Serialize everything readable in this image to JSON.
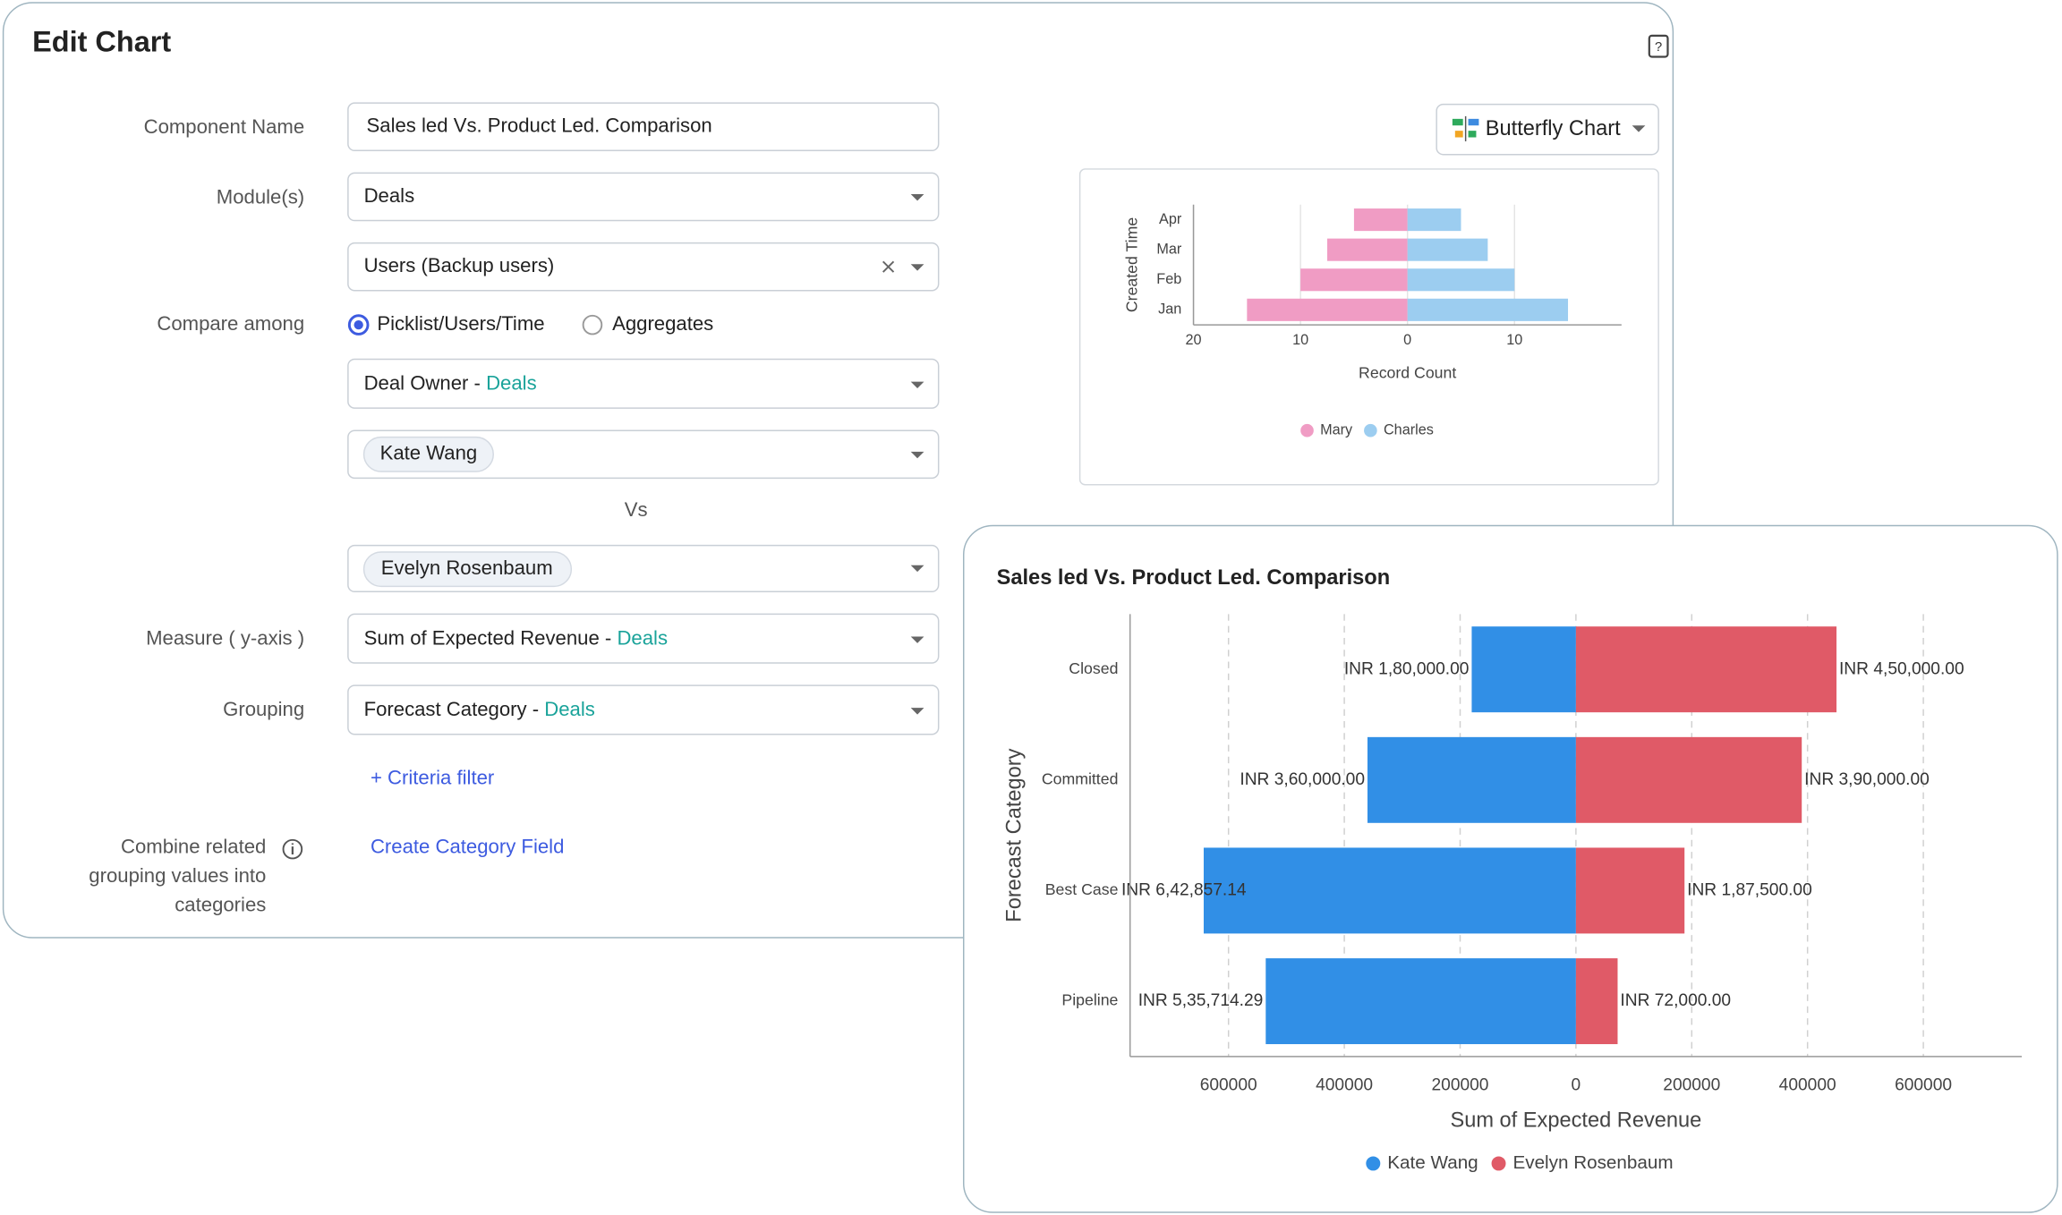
{
  "window": {
    "title": "Edit Chart"
  },
  "form": {
    "component_name": {
      "label": "Component Name",
      "value": "Sales led Vs. Product Led. Comparison"
    },
    "modules": {
      "label": "Module(s)",
      "value": "Deals",
      "sub_value": "Users (Backup users)"
    },
    "compare_among": {
      "label": "Compare among",
      "options": [
        "Picklist/Users/Time",
        "Aggregates"
      ]
    },
    "compare_field": {
      "field": "Deal Owner -",
      "module": "Deals"
    },
    "first_value": "Kate Wang",
    "vs": "Vs",
    "second_value": "Evelyn Rosenbaum",
    "measure": {
      "label": "Measure ( y-axis )",
      "field": "Sum of Expected Revenue -",
      "module": "Deals"
    },
    "grouping": {
      "label": "Grouping",
      "field": "Forecast Category -",
      "module": "Deals"
    },
    "criteria_filter": "+ Criteria filter",
    "combine": {
      "label_lines": [
        "Combine related",
        "grouping values into",
        "categories"
      ],
      "link": "Create Category Field"
    }
  },
  "chart_type": "Butterfly Chart",
  "chart_data": [
    {
      "type": "butterfly",
      "categories": [
        "Apr",
        "Mar",
        "Feb",
        "Jan"
      ],
      "series": [
        {
          "name": "Mary",
          "color": "#f09cc4",
          "values": [
            5,
            7.5,
            10,
            15
          ]
        },
        {
          "name": "Charles",
          "color": "#9ccdf0",
          "values": [
            5,
            7.5,
            10,
            15
          ]
        }
      ],
      "xlim": [
        -20,
        20
      ],
      "xticks": [
        {
          "value": -20,
          "label": "20"
        },
        {
          "value": -10,
          "label": "10"
        },
        0,
        10
      ],
      "xlabel": "Record Count",
      "ylabel": "Created Time",
      "grid": true
    },
    {
      "type": "butterfly",
      "title": "Sales led Vs. Product Led. Comparison",
      "categories": [
        "Closed",
        "Committed",
        "Best Case",
        "Pipeline"
      ],
      "series": [
        {
          "name": "Kate Wang",
          "color": "#318fe6",
          "values": [
            180000,
            360000,
            642857.14,
            535714.29
          ],
          "value_labels": [
            "INR 1,80,000.00",
            "INR 3,60,000.00",
            "INR 6,42,857.14",
            "INR 5,35,714.29"
          ]
        },
        {
          "name": "Evelyn Rosenbaum",
          "color": "#e05a67",
          "values": [
            450000,
            390000,
            187500,
            72000
          ],
          "value_labels": [
            "INR 4,50,000.00",
            "INR 3,90,000.00",
            "INR 1,87,500.00",
            "INR 72,000.00"
          ]
        }
      ],
      "xlim": [
        -770000,
        770000
      ],
      "xticks": [
        {
          "value": -600000,
          "label": "600000"
        },
        {
          "value": -400000,
          "label": "400000"
        },
        {
          "value": -200000,
          "label": "200000"
        },
        0,
        200000,
        400000,
        600000
      ],
      "xlabel": "Sum of Expected Revenue",
      "ylabel": "Forecast Category",
      "grid": true
    }
  ]
}
